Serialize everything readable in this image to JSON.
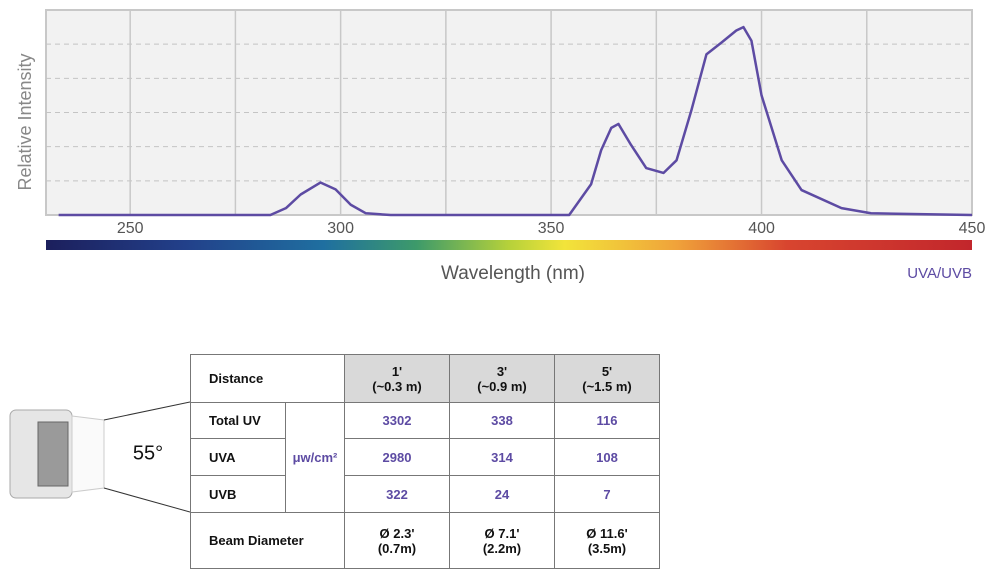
{
  "chart_data": {
    "type": "line",
    "y_label": "Relative Intensity",
    "x_label": "Wavelength (nm)",
    "xlim": [
      230,
      450
    ],
    "xticks": [
      250,
      300,
      350,
      400,
      450
    ],
    "xminorticks": [
      275,
      325,
      375,
      425
    ],
    "ylim": [
      0,
      1.2
    ],
    "ygrid": [
      0.2,
      0.4,
      0.6,
      0.8,
      1.0
    ],
    "grid": true,
    "x": [
      233,
      283.3,
      287,
      290.5,
      295.2,
      298.8,
      302.4,
      306,
      311.9,
      354.3,
      359.5,
      361.9,
      364.3,
      366,
      369,
      372.6,
      376.7,
      379.8,
      383.3,
      386.9,
      390.5,
      394,
      395.7,
      397.6,
      400,
      404.8,
      409.5,
      419,
      426,
      450
    ],
    "series": [
      {
        "name": "UVA/UVB",
        "color": "#5d4ba3",
        "values": [
          0,
          0,
          0.04,
          0.12,
          0.19,
          0.15,
          0.06,
          0.01,
          0,
          0,
          0.18,
          0.38,
          0.51,
          0.533,
          0.41,
          0.275,
          0.246,
          0.32,
          0.61,
          0.94,
          1.01,
          1.08,
          1.1,
          1.02,
          0.7,
          0.32,
          0.146,
          0.04,
          0.01,
          0
        ]
      }
    ]
  },
  "angle": "55°",
  "table": {
    "header": {
      "label": "Distance",
      "columns": [
        {
          "line1": "1'",
          "line2": "(~0.3 m)"
        },
        {
          "line1": "3'",
          "line2": "(~0.9 m)"
        },
        {
          "line1": "5'",
          "line2": "(~1.5 m)"
        }
      ]
    },
    "unit": "μw/cm²",
    "rows": [
      {
        "label": "Total UV",
        "values": [
          3302,
          338,
          116
        ]
      },
      {
        "label": "UVA",
        "values": [
          2980,
          314,
          108
        ]
      },
      {
        "label": "UVB",
        "values": [
          322,
          24,
          7
        ]
      }
    ],
    "beam": {
      "label": "Beam Diameter",
      "values": [
        {
          "line1": "Ø 2.3'",
          "line2": "(0.7m)"
        },
        {
          "line1": "Ø 7.1'",
          "line2": "(2.2m)"
        },
        {
          "line1": "Ø 11.6'",
          "line2": "(3.5m)"
        }
      ]
    }
  }
}
